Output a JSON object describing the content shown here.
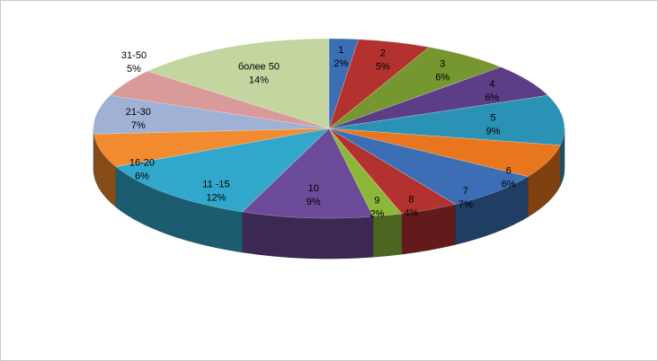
{
  "chart_data": {
    "type": "pie",
    "style": "3d",
    "title": "",
    "legend": "none",
    "slices": [
      {
        "label": "1",
        "pct_text": "2%",
        "value": 2,
        "color": "#3b6eb5"
      },
      {
        "label": "2",
        "pct_text": "5%",
        "value": 5,
        "color": "#b3312f"
      },
      {
        "label": "3",
        "pct_text": "6%",
        "value": 6,
        "color": "#76962f"
      },
      {
        "label": "4",
        "pct_text": "6%",
        "value": 6,
        "color": "#5b3e86"
      },
      {
        "label": "5",
        "pct_text": "9%",
        "value": 9,
        "color": "#2a93b5"
      },
      {
        "label": "6",
        "pct_text": "6%",
        "value": 6,
        "color": "#e8761f"
      },
      {
        "label": "7",
        "pct_text": "7%",
        "value": 7,
        "color": "#3b6eb5"
      },
      {
        "label": "8",
        "pct_text": "4%",
        "value": 4,
        "color": "#b3312f"
      },
      {
        "label": "9",
        "pct_text": "2%",
        "value": 2,
        "color": "#8cb83a"
      },
      {
        "label": "10",
        "pct_text": "9%",
        "value": 9,
        "color": "#6b4b98"
      },
      {
        "label": "11 -15",
        "pct_text": "12%",
        "value": 12,
        "color": "#31a7cc"
      },
      {
        "label": "16-20",
        "pct_text": "6%",
        "value": 6,
        "color": "#f28a2f"
      },
      {
        "label": "21-30",
        "pct_text": "7%",
        "value": 7,
        "color": "#9fb2d6"
      },
      {
        "label": "31-50",
        "pct_text": "5%",
        "value": 5,
        "color": "#d99a9a"
      },
      {
        "label": "более 50",
        "pct_text": "14%",
        "value": 14,
        "color": "#c3d6a0"
      }
    ]
  }
}
